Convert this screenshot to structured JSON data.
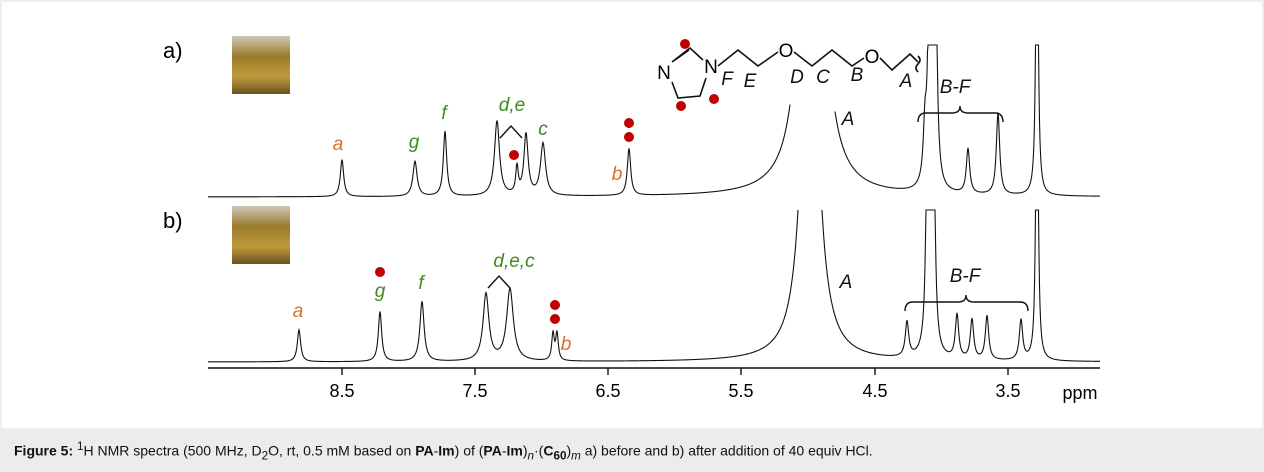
{
  "panels": [
    {
      "label": "a)",
      "peak_labels": [
        "a",
        "g",
        "f",
        "d,e",
        "c",
        "b",
        "A",
        "B-F"
      ]
    },
    {
      "label": "b)",
      "peak_labels": [
        "a",
        "g",
        "f",
        "d,e,c",
        "b",
        "A",
        "B-F"
      ]
    }
  ],
  "molecule": {
    "atoms": [
      "N",
      "N",
      "O",
      "O"
    ],
    "chain_labels": [
      "F",
      "E",
      "D",
      "C",
      "B",
      "A"
    ]
  },
  "axis": {
    "ticks": [
      "8.5",
      "7.5",
      "6.5",
      "5.5",
      "4.5",
      "3.5"
    ],
    "unit": "ppm"
  },
  "caption": [
    "Figure 5:",
    "1",
    "H NMR spectra (500 MHz, D",
    "2",
    "O, rt, 0.5 mM based on ",
    "PA",
    "-",
    "Im",
    ") of (",
    "PA",
    "-",
    "Im",
    ")",
    "n",
    "·(",
    "C",
    "60",
    ")",
    "m",
    " a) before and b) after addition of 40 equiv HCl."
  ]
}
